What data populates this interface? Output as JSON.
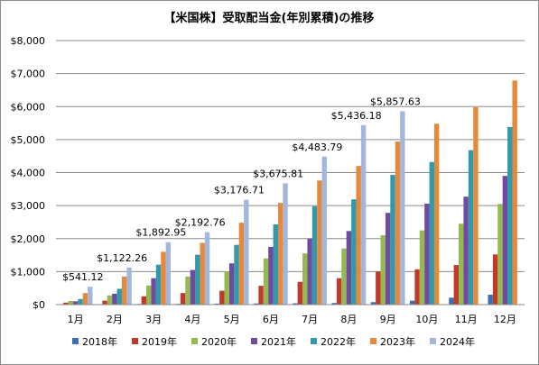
{
  "chart_data": {
    "type": "bar",
    "title": "【米国株】受取配当金(年別累積)の推移",
    "categories": [
      "1月",
      "2月",
      "3月",
      "4月",
      "5月",
      "6月",
      "7月",
      "8月",
      "9月",
      "10月",
      "11月",
      "12月"
    ],
    "ylim": [
      0,
      8000
    ],
    "yticks": [
      0,
      1000,
      2000,
      3000,
      4000,
      5000,
      6000,
      7000,
      8000
    ],
    "ytick_labels": [
      "$0",
      "$1,000",
      "$2,000",
      "$3,000",
      "$4,000",
      "$5,000",
      "$6,000",
      "$7,000",
      "$8,000"
    ],
    "grid": true,
    "legend_position": "bottom",
    "series": [
      {
        "name": "2018年",
        "color": "#3a6eb5",
        "values": [
          10,
          15,
          20,
          25,
          30,
          35,
          40,
          50,
          75,
          120,
          210,
          300
        ]
      },
      {
        "name": "2019年",
        "color": "#c0392b",
        "values": [
          60,
          120,
          250,
          350,
          420,
          570,
          690,
          800,
          1000,
          1070,
          1200,
          1520
        ]
      },
      {
        "name": "2020年",
        "color": "#93b94f",
        "values": [
          110,
          280,
          580,
          850,
          1000,
          1400,
          1550,
          1700,
          2100,
          2250,
          2450,
          3050
        ]
      },
      {
        "name": "2021年",
        "color": "#6f4a9e",
        "values": [
          100,
          330,
          800,
          1050,
          1250,
          1750,
          2000,
          2230,
          2780,
          3060,
          3270,
          3900
        ]
      },
      {
        "name": "2022年",
        "color": "#2e9aac",
        "values": [
          170,
          480,
          1210,
          1510,
          1810,
          2430,
          2980,
          3190,
          3930,
          4320,
          4680,
          5380
        ]
      },
      {
        "name": "2023年",
        "color": "#e6893a",
        "values": [
          350,
          850,
          1600,
          1870,
          2480,
          3080,
          3760,
          4200,
          4940,
          5480,
          5980,
          6790
        ]
      },
      {
        "name": "2024年",
        "color": "#a3b7dc",
        "values": [
          541.12,
          1122.26,
          1892.95,
          2192.76,
          3176.71,
          3675.81,
          4483.79,
          5436.18,
          5857.63,
          null,
          null,
          null
        ]
      }
    ],
    "data_labels": [
      "$541.12",
      "$1,122.26",
      "$1,892.95",
      "$2,192.76",
      "$3,176.71",
      "$3,675.81",
      "$4,483.79",
      "$5,436.18",
      "$5,857.63"
    ]
  }
}
